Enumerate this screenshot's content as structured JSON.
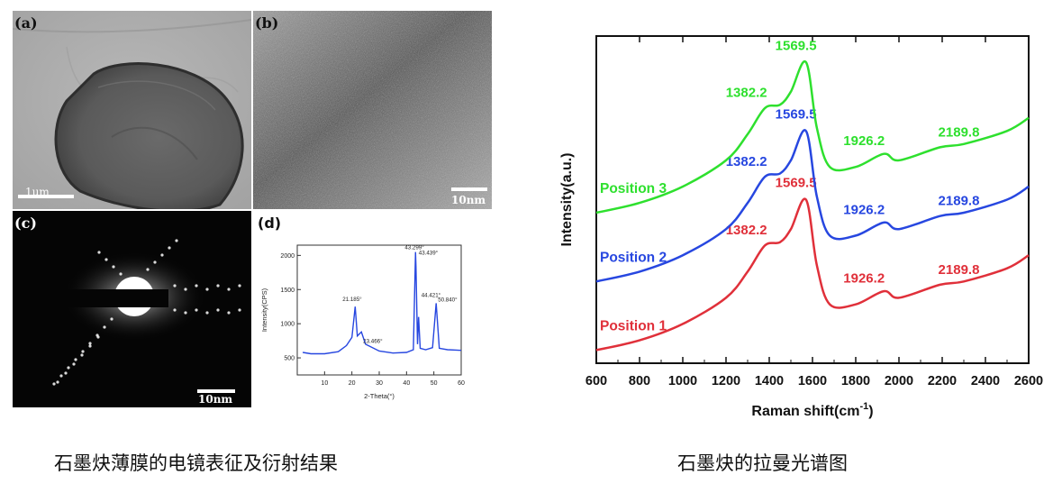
{
  "panels": {
    "a": {
      "label": "(a)",
      "scale": "1μm"
    },
    "b": {
      "label": "(b)",
      "scale": "10nm"
    },
    "c": {
      "label": "(c)",
      "scale": "10nm"
    },
    "d": {
      "label": "(d)"
    }
  },
  "captions": {
    "left": "石墨炔薄膜的电镜表征及衍射结果",
    "right": "石墨炔的拉曼光谱图"
  },
  "chart_data": [
    {
      "type": "line",
      "xlabel": "2-Theta(°)",
      "ylabel": "Intensity(CPS)",
      "xlim": [
        0,
        60
      ],
      "ylim": [
        250,
        2150
      ],
      "xticks": [
        10,
        20,
        30,
        40,
        50,
        60
      ],
      "yticks": [
        500,
        1000,
        1500,
        2000
      ],
      "x": [
        2,
        5,
        10,
        15,
        18,
        20,
        21.185,
        22,
        23.466,
        25,
        30,
        35,
        40,
        42.5,
        43.299,
        43.439,
        44.0,
        44.421,
        45,
        47,
        49.5,
        50.84,
        52,
        55,
        60
      ],
      "y": [
        580,
        560,
        560,
        590,
        680,
        800,
        1250,
        820,
        880,
        700,
        600,
        570,
        580,
        620,
        2050,
        1830,
        700,
        1100,
        640,
        620,
        650,
        1300,
        640,
        620,
        610
      ],
      "peaks": [
        {
          "x": 21.185,
          "y": 1250,
          "label": "21.185°"
        },
        {
          "x": 23.466,
          "y": 880,
          "label": "23.466°"
        },
        {
          "x": 43.299,
          "y": 2050,
          "label": "43.299°"
        },
        {
          "x": 43.439,
          "y": 1830,
          "label": "43.439°"
        },
        {
          "x": 44.421,
          "y": 1100,
          "label": "44.421°"
        },
        {
          "x": 50.84,
          "y": 1300,
          "label": "50.840°"
        }
      ],
      "colors": {
        "line": "#2747e0"
      }
    },
    {
      "type": "line",
      "xlabel": "Raman shift(cm",
      "xlabel_sup": "-1",
      "xlabel_tail": ")",
      "ylabel": "Intensity(a.u.)",
      "xlim": [
        600,
        2600
      ],
      "ylim": [
        0,
        100
      ],
      "xticks": [
        600,
        800,
        1000,
        1200,
        1400,
        1600,
        1800,
        2000,
        2200,
        2400,
        2600
      ],
      "x": [
        600,
        800,
        1000,
        1200,
        1300,
        1380,
        1450,
        1500,
        1570,
        1620,
        1680,
        1800,
        1930,
        2000,
        2190,
        2300,
        2500,
        2600
      ],
      "series": [
        {
          "name": "Position 1",
          "color": "#e0303a",
          "y": [
            4,
            7,
            12,
            20,
            28,
            36,
            37,
            41,
            50,
            30,
            18,
            18,
            22,
            20,
            24,
            25,
            29,
            33
          ],
          "peaks": [
            "1382.2",
            "1569.5",
            "1926.2",
            "2189.8"
          ]
        },
        {
          "name": "Position 2",
          "color": "#2747e0",
          "y": [
            25,
            28,
            33,
            41,
            49,
            57,
            58,
            62,
            71,
            51,
            39,
            39,
            43,
            41,
            45,
            46,
            50,
            54
          ],
          "peaks": [
            "1382.2",
            "1569.5",
            "1926.2",
            "2189.8"
          ]
        },
        {
          "name": "Position 3",
          "color": "#2ee02e",
          "y": [
            46,
            49,
            54,
            62,
            70,
            78,
            79,
            83,
            92,
            72,
            60,
            60,
            64,
            62,
            66,
            67,
            71,
            75
          ],
          "peaks": [
            "1382.2",
            "1569.5",
            "1926.2",
            "2189.8"
          ]
        }
      ]
    }
  ]
}
